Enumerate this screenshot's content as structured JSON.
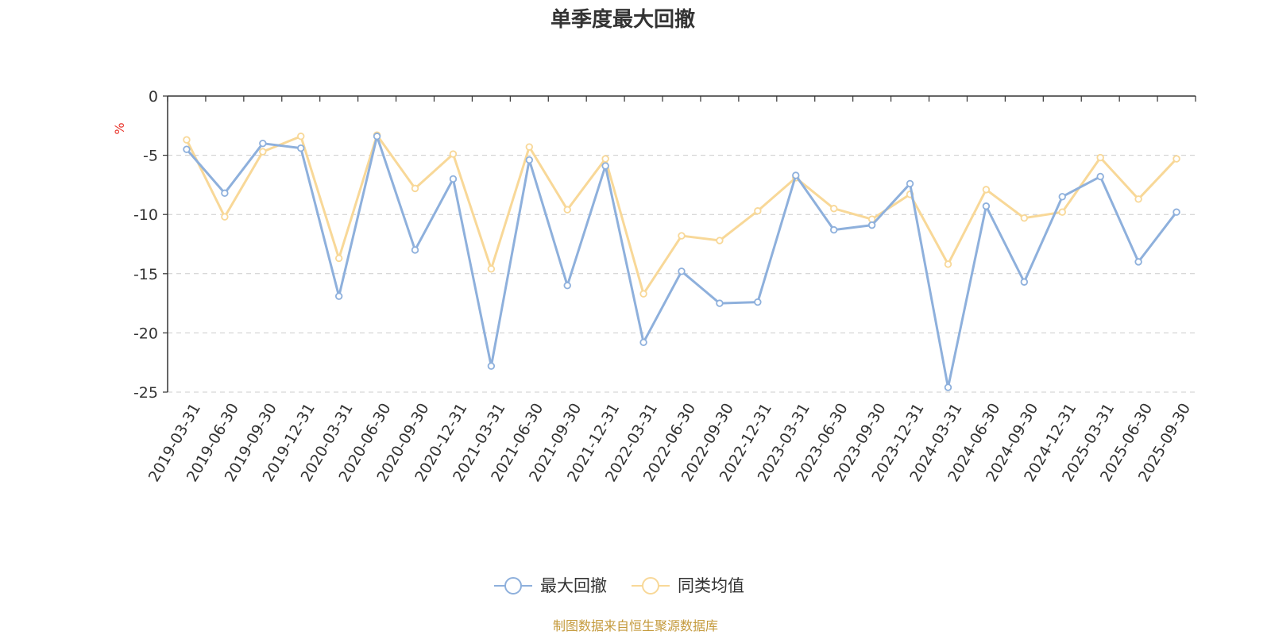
{
  "chart_data": {
    "type": "line",
    "title": "单季度最大回撤",
    "ylabel": "%",
    "ylim": [
      -25,
      0
    ],
    "yticks": [
      0,
      -5,
      -10,
      -15,
      -20,
      -25
    ],
    "grid": true,
    "legend_position": "bottom-center",
    "x": [
      "2019-03-31",
      "2019-06-30",
      "2019-09-30",
      "2019-12-31",
      "2020-03-31",
      "2020-06-30",
      "2020-09-30",
      "2020-12-31",
      "2021-03-31",
      "2021-06-30",
      "2021-09-30",
      "2021-12-31",
      "2022-03-31",
      "2022-06-30",
      "2022-09-30",
      "2022-12-31",
      "2023-03-31",
      "2023-06-30",
      "2023-09-30",
      "2023-12-31",
      "2024-03-31",
      "2024-06-30",
      "2024-09-30",
      "2024-12-31",
      "2025-03-31",
      "2025-06-30",
      "2025-09-30"
    ],
    "series": [
      {
        "name": "最大回撤",
        "color": "#8eb0dc",
        "values": [
          -4.5,
          -8.2,
          -4.0,
          -4.4,
          -16.9,
          -3.4,
          -13.0,
          -7.0,
          -22.8,
          -5.4,
          -16.0,
          -5.9,
          -20.8,
          -14.8,
          -17.5,
          -17.4,
          -6.7,
          -11.3,
          -10.9,
          -7.4,
          -24.6,
          -9.3,
          -15.7,
          -8.5,
          -6.8,
          -14.0,
          -9.8
        ]
      },
      {
        "name": "同类均值",
        "color": "#f8d898",
        "values": [
          -3.7,
          -10.2,
          -4.7,
          -3.4,
          -13.7,
          -3.3,
          -7.8,
          -4.9,
          -14.6,
          -4.3,
          -9.6,
          -5.3,
          -16.7,
          -11.8,
          -12.2,
          -9.7,
          -6.9,
          -9.5,
          -10.4,
          -8.3,
          -14.2,
          -7.9,
          -10.3,
          -9.8,
          -5.2,
          -8.7,
          -5.3
        ]
      }
    ]
  },
  "source_text": "制图数据来自恒生聚源数据库",
  "colors": {
    "unit": "#e8342b",
    "source": "#c49a3c",
    "grid": "#cccccc",
    "axis": "#333333"
  }
}
